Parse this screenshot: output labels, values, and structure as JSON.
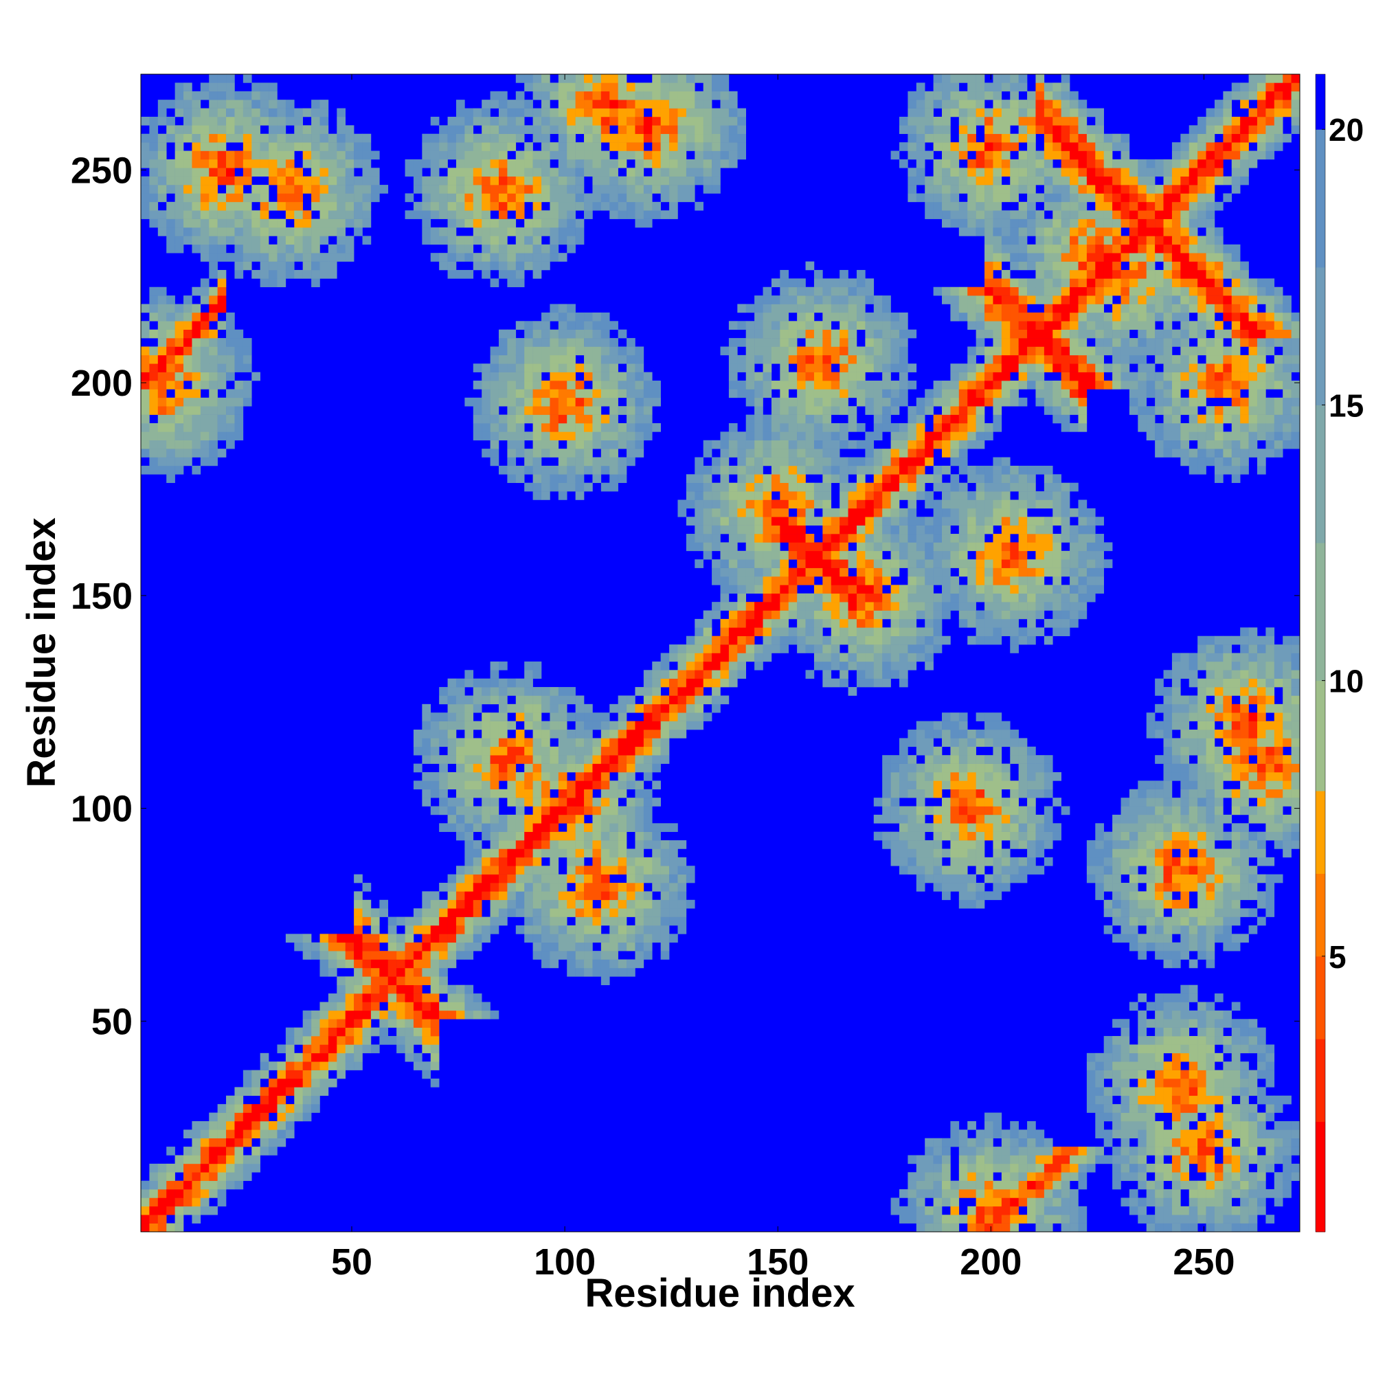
{
  "chart_data": {
    "type": "heatmap",
    "title": "",
    "xlabel": "Residue index",
    "ylabel": "Residue index",
    "xlim": [
      1,
      272
    ],
    "ylim": [
      1,
      272
    ],
    "x_ticks": [
      50,
      100,
      150,
      200,
      250
    ],
    "y_ticks": [
      50,
      100,
      150,
      200,
      250
    ],
    "colorbar": {
      "ticks": [
        5,
        10,
        15,
        20
      ],
      "range": [
        0,
        21
      ],
      "colors": [
        "#ff0000",
        "#ff2a00",
        "#ff5500",
        "#ff7a00",
        "#ffa200",
        "#9fbf8a",
        "#8fb49a",
        "#7fa8aa",
        "#6f9cba",
        "#5f90c2",
        "#0000ff"
      ],
      "bounds": [
        0,
        2,
        3.5,
        5,
        6.5,
        8,
        10,
        12.5,
        15,
        17.5,
        20,
        21
      ]
    },
    "contact_features": [
      {
        "kind": "diagonal",
        "note": "main diagonal i=j, distance near 0"
      },
      {
        "kind": "antiparallel",
        "sum": 120,
        "from": 50,
        "to": 70
      },
      {
        "kind": "antiparallel",
        "sum": 422,
        "from": 199,
        "to": 223
      },
      {
        "kind": "antiparallel",
        "sum": 474,
        "from": 211,
        "to": 263
      },
      {
        "kind": "antiparallel",
        "sum": 318,
        "from": 150,
        "to": 168
      },
      {
        "kind": "parallel",
        "offset": 199,
        "from": 1,
        "to": 20
      },
      {
        "kind": "parallel",
        "offset": 110,
        "from": 240,
        "to": 262
      },
      {
        "kind": "blob",
        "x": 100,
        "y": 100
      },
      {
        "kind": "blob",
        "x": 108,
        "y": 82
      },
      {
        "kind": "blob",
        "x": 87,
        "y": 112
      },
      {
        "kind": "blob",
        "x": 150,
        "y": 170
      },
      {
        "kind": "blob",
        "x": 170,
        "y": 150
      },
      {
        "kind": "blob",
        "x": 245,
        "y": 85
      },
      {
        "kind": "blob",
        "x": 85,
        "y": 245
      },
      {
        "kind": "blob",
        "x": 245,
        "y": 35
      },
      {
        "kind": "blob",
        "x": 35,
        "y": 245
      },
      {
        "kind": "blob",
        "x": 195,
        "y": 100
      },
      {
        "kind": "blob",
        "x": 100,
        "y": 195
      },
      {
        "kind": "blob",
        "x": 20,
        "y": 250
      },
      {
        "kind": "blob",
        "x": 250,
        "y": 20
      },
      {
        "kind": "blob",
        "x": 225,
        "y": 230
      },
      {
        "kind": "blob",
        "x": 230,
        "y": 225
      },
      {
        "kind": "blob",
        "x": 160,
        "y": 205
      },
      {
        "kind": "blob",
        "x": 205,
        "y": 160
      },
      {
        "kind": "blob",
        "x": 110,
        "y": 265
      },
      {
        "kind": "blob",
        "x": 265,
        "y": 110
      },
      {
        "kind": "blob",
        "x": 5,
        "y": 200
      },
      {
        "kind": "blob",
        "x": 200,
        "y": 5
      },
      {
        "kind": "blob",
        "x": 260,
        "y": 120
      },
      {
        "kind": "blob",
        "x": 120,
        "y": 260
      },
      {
        "kind": "blob",
        "x": 255,
        "y": 200
      },
      {
        "kind": "blob",
        "x": 200,
        "y": 255
      }
    ]
  }
}
